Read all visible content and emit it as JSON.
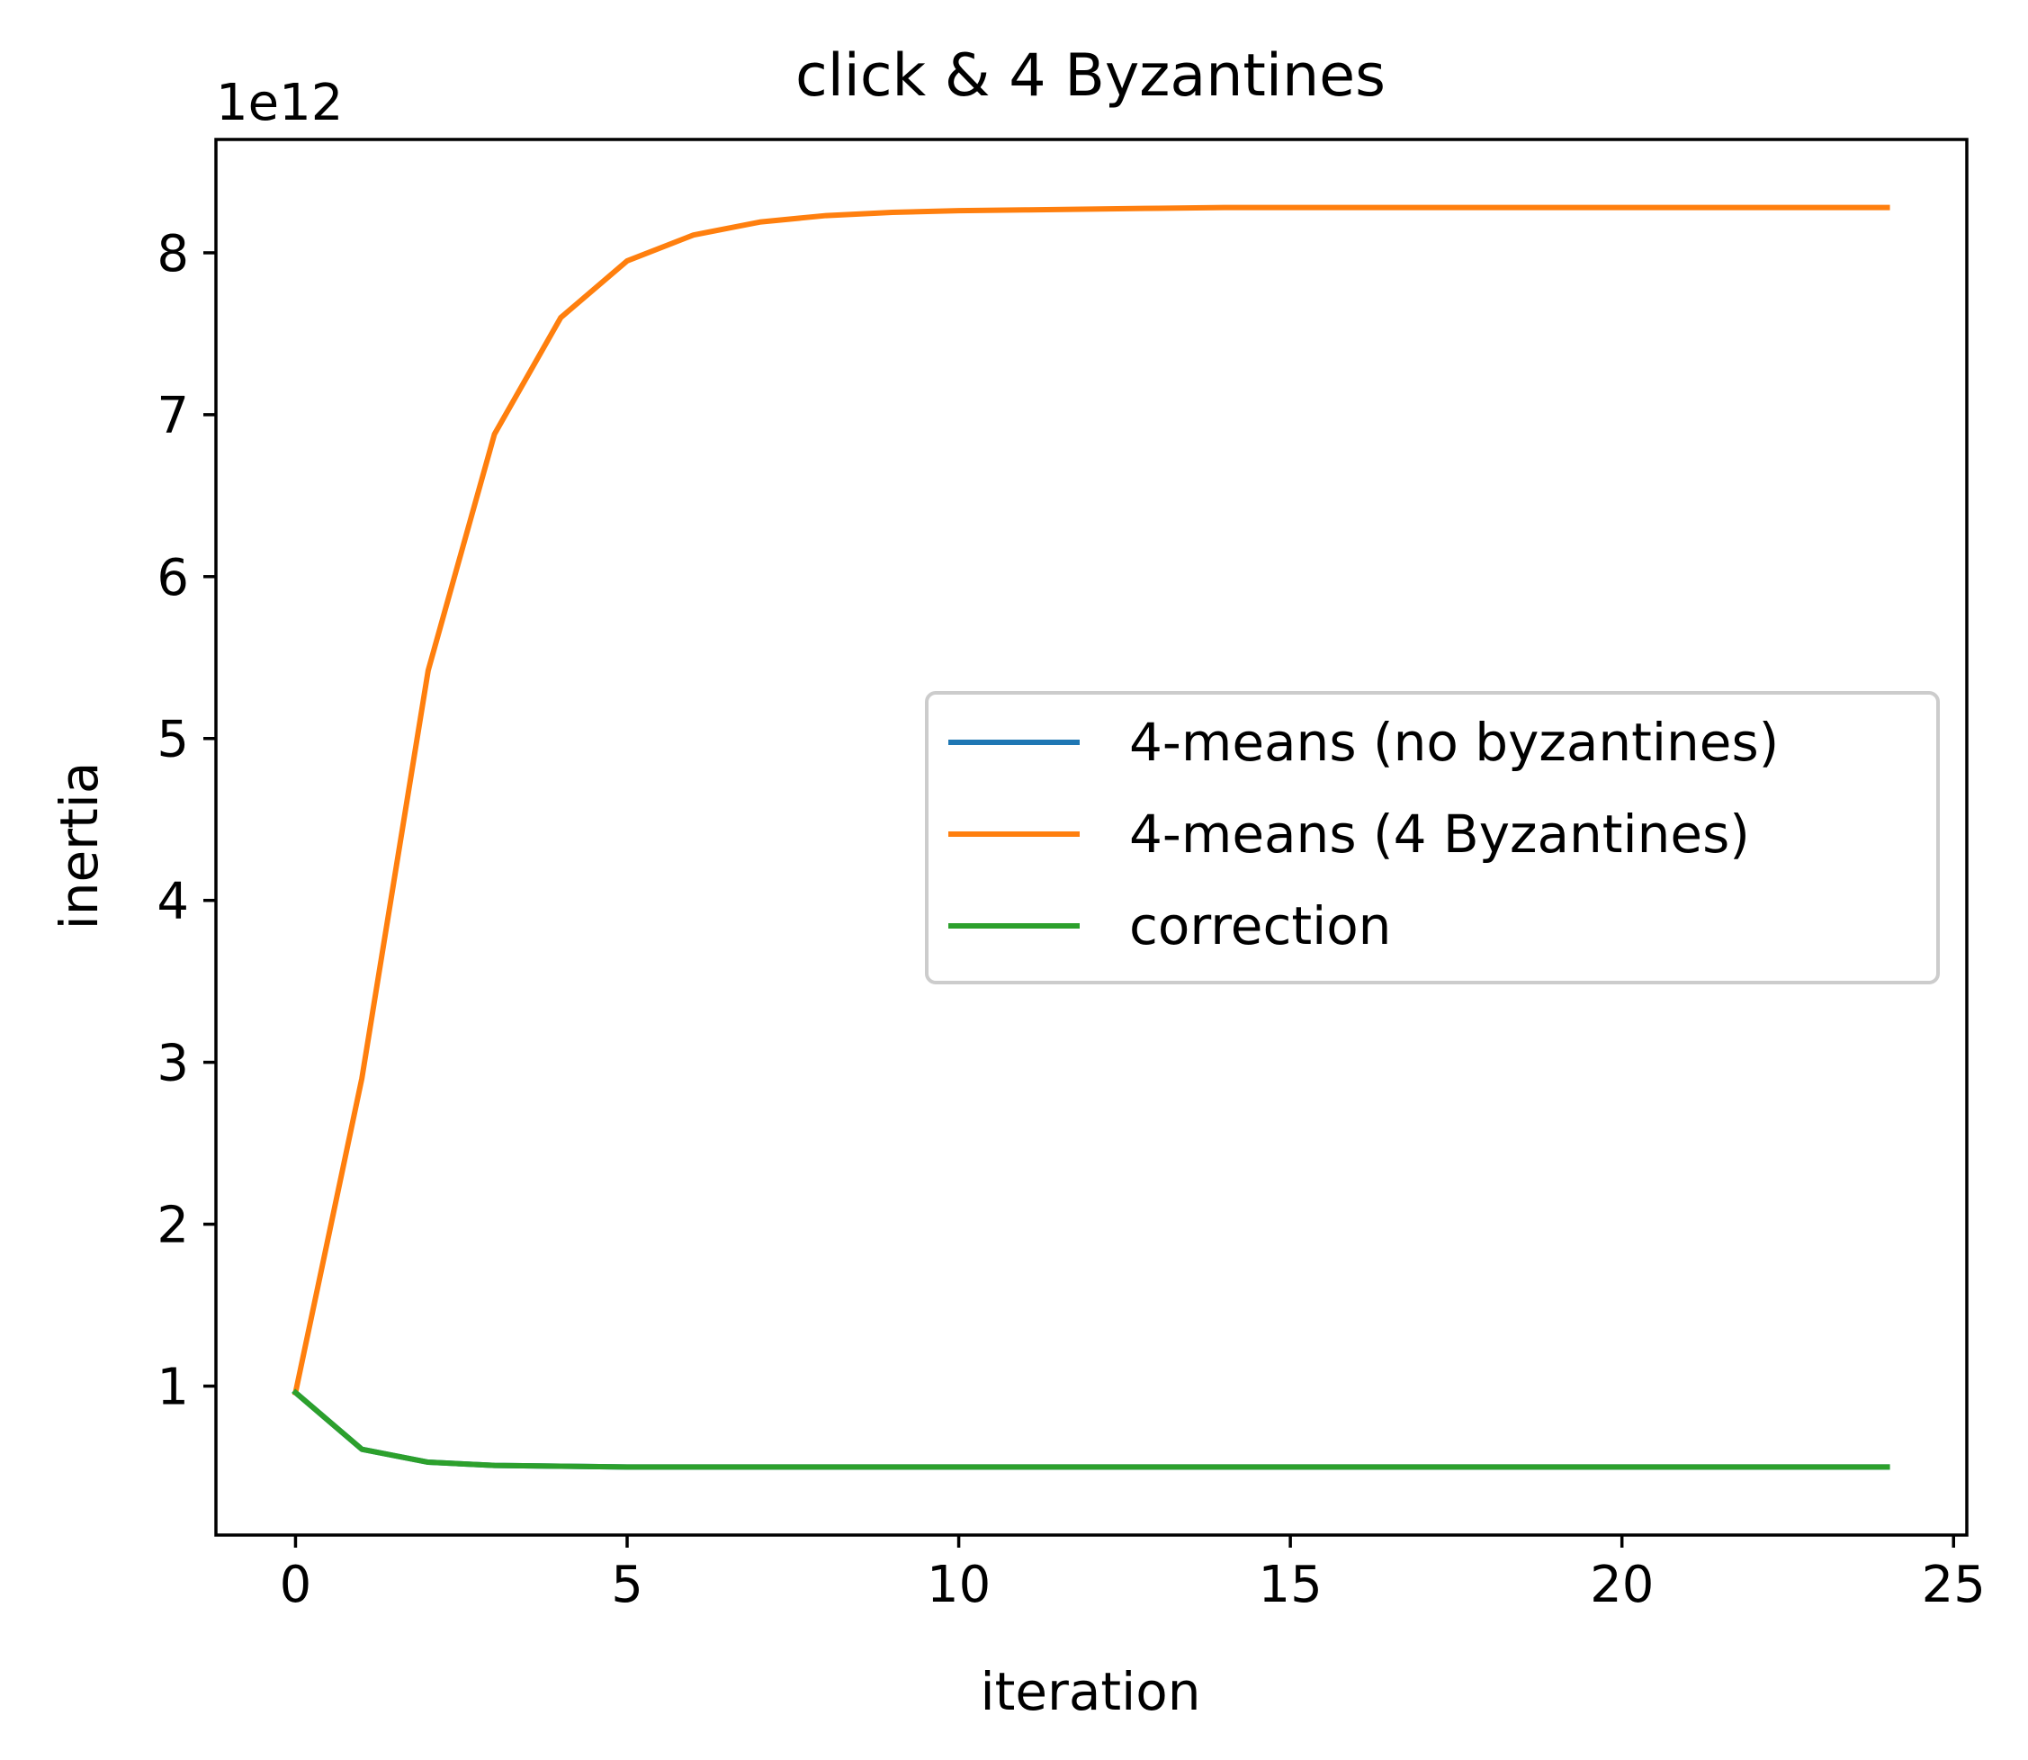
{
  "chart_data": {
    "type": "line",
    "title": "click & 4 Byzantines",
    "xlabel": "iteration",
    "ylabel": "inertia",
    "y_offset_label": "1e12",
    "xlim": [
      -1.2,
      25.2
    ],
    "ylim": [
      0.08,
      8.7
    ],
    "x_ticks": [
      0,
      5,
      10,
      15,
      20,
      25
    ],
    "x_tick_labels": [
      "0",
      "5",
      "10",
      "15",
      "20",
      "25"
    ],
    "y_ticks": [
      1,
      2,
      3,
      4,
      5,
      6,
      7,
      8
    ],
    "y_tick_labels": [
      "1",
      "2",
      "3",
      "4",
      "5",
      "6",
      "7",
      "8"
    ],
    "grid": false,
    "legend_position": "center-right",
    "x": [
      0,
      1,
      2,
      3,
      4,
      5,
      6,
      7,
      8,
      9,
      10,
      11,
      12,
      13,
      14,
      15,
      16,
      17,
      18,
      19,
      20,
      21,
      22,
      23,
      24
    ],
    "series": [
      {
        "name": "4-means (no byzantines)",
        "color": "#1f77b4",
        "values": [
          0.96,
          0.61,
          0.53,
          0.51,
          0.505,
          0.5,
          0.5,
          0.5,
          0.5,
          0.5,
          0.5,
          0.5,
          0.5,
          0.5,
          0.5,
          0.5,
          0.5,
          0.5,
          0.5,
          0.5,
          0.5,
          0.5,
          0.5,
          0.5,
          0.5
        ]
      },
      {
        "name": "4-means (4 Byzantines)",
        "color": "#ff7f0e",
        "values": [
          0.96,
          2.9,
          5.42,
          6.88,
          7.6,
          7.95,
          8.11,
          8.19,
          8.23,
          8.25,
          8.26,
          8.265,
          8.27,
          8.275,
          8.28,
          8.28,
          8.28,
          8.28,
          8.28,
          8.28,
          8.28,
          8.28,
          8.28,
          8.28,
          8.28
        ]
      },
      {
        "name": "correction",
        "color": "#2ca02c",
        "values": [
          0.96,
          0.61,
          0.53,
          0.51,
          0.505,
          0.5,
          0.5,
          0.5,
          0.5,
          0.5,
          0.5,
          0.5,
          0.5,
          0.5,
          0.5,
          0.5,
          0.5,
          0.5,
          0.5,
          0.5,
          0.5,
          0.5,
          0.5,
          0.5,
          0.5
        ]
      }
    ]
  }
}
